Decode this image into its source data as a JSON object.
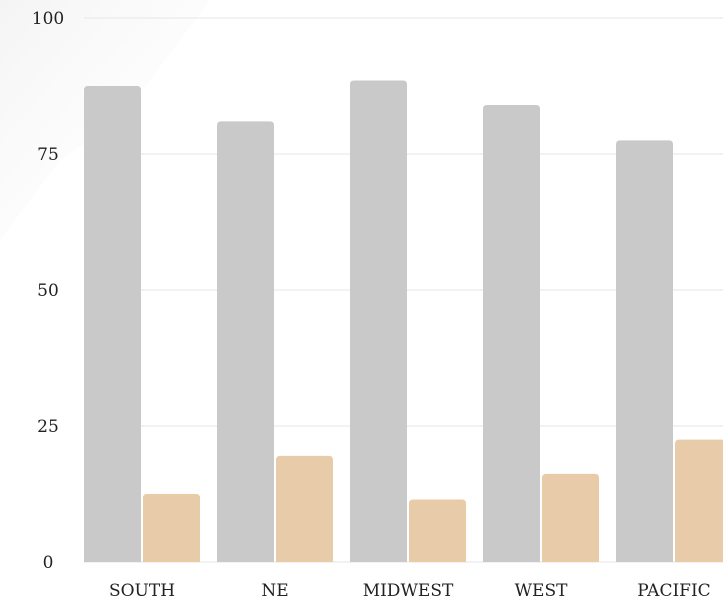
{
  "chart_data": {
    "type": "bar",
    "title": "",
    "xlabel": "",
    "ylabel": "",
    "categories": [
      "SOUTH",
      "NE",
      "MIDWEST",
      "WEST",
      "PACIFIC"
    ],
    "series": [
      {
        "values": [
          87.5,
          81,
          88.5,
          84,
          77.5
        ],
        "color": "#c9c9c9"
      },
      {
        "values": [
          12.5,
          19.5,
          11.5,
          16.2,
          22.5
        ],
        "color": "#e8cba8"
      }
    ],
    "ylim": [
      0,
      100
    ],
    "yticks": [
      0,
      25,
      50,
      75,
      100
    ],
    "ytick_labels": [
      "0",
      "25",
      "50",
      "75",
      "100"
    ],
    "grid": true,
    "legend": "none"
  }
}
